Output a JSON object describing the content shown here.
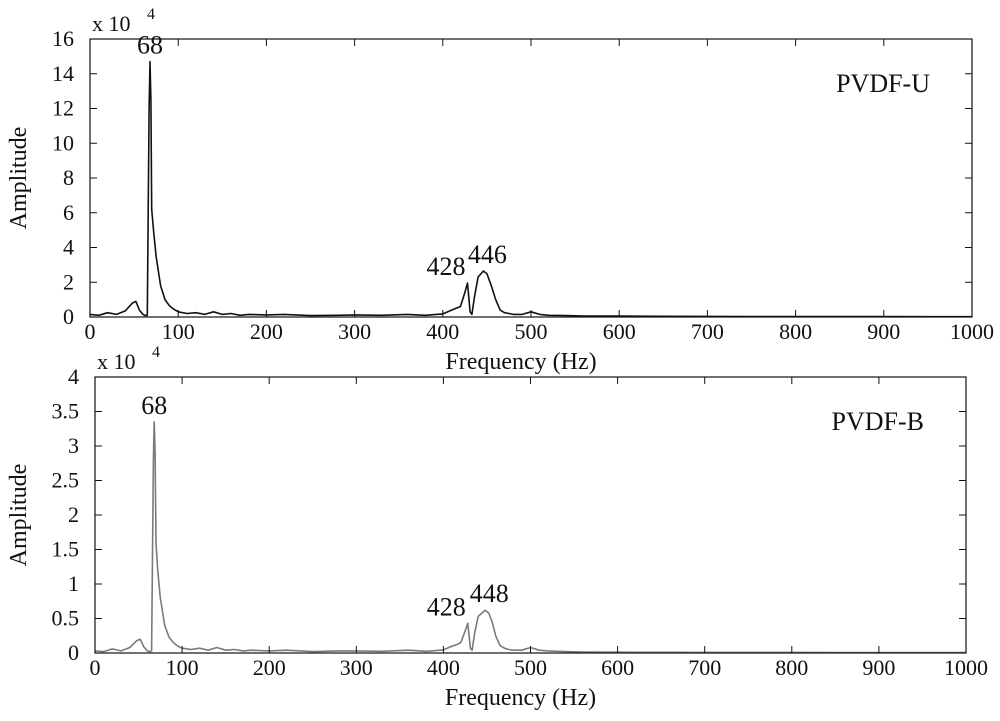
{
  "chart_data": [
    {
      "type": "line",
      "label": "PVDF-U",
      "xlabel": "Frequency (Hz)",
      "ylabel": "Amplitude",
      "y_multiplier": "x 10",
      "y_multiplier_exp": "4",
      "xlim": [
        0,
        1000
      ],
      "ylim": [
        0,
        160000
      ],
      "xticks": [
        0,
        100,
        200,
        300,
        400,
        500,
        600,
        700,
        800,
        900,
        1000
      ],
      "xtick_labels": [
        "0",
        "100",
        "200",
        "300",
        "400",
        "500",
        "600",
        "700",
        "800",
        "900",
        "1000"
      ],
      "yticks": [
        0,
        20000,
        40000,
        60000,
        80000,
        100000,
        120000,
        140000,
        160000
      ],
      "ytick_labels": [
        "0",
        "2",
        "4",
        "6",
        "8",
        "10",
        "12",
        "14",
        "16"
      ],
      "line_color": "#111111",
      "grid": false,
      "annotations": [
        {
          "text": "68",
          "x": 68,
          "y": 147000
        },
        {
          "text": "428",
          "x": 428,
          "y": 19500
        },
        {
          "text": "446",
          "x": 446,
          "y": 26500
        }
      ],
      "series": [
        {
          "x": [
            0,
            10,
            20,
            30,
            40,
            48,
            52,
            56,
            60,
            63,
            65,
            67,
            68,
            69,
            70,
            72,
            75,
            80,
            85,
            90,
            95,
            100,
            110,
            120,
            130,
            140,
            150,
            160,
            170,
            180,
            200,
            220,
            250,
            280,
            300,
            330,
            360,
            380,
            400,
            410,
            415,
            420,
            425,
            428,
            431,
            433,
            436,
            440,
            446,
            450,
            455,
            460,
            465,
            470,
            475,
            480,
            490,
            500,
            510,
            520,
            540,
            560,
            600,
            650,
            700,
            750,
            800,
            850,
            900,
            950,
            1000
          ],
          "y": [
            1500,
            1000,
            2500,
            1500,
            3500,
            8000,
            9000,
            4000,
            1500,
            800,
            1000,
            120000,
            147000,
            125000,
            62000,
            50000,
            35000,
            18000,
            10000,
            6500,
            4500,
            3000,
            2000,
            2500,
            1500,
            3000,
            1500,
            2000,
            1000,
            1500,
            1200,
            1500,
            800,
            1000,
            1200,
            1000,
            1500,
            1000,
            1800,
            4000,
            5000,
            6000,
            14000,
            19500,
            3000,
            1500,
            12000,
            23000,
            26500,
            25000,
            18000,
            10000,
            4000,
            2500,
            2000,
            1500,
            1500,
            3000,
            1500,
            1000,
            800,
            600,
            500,
            400,
            350,
            300,
            300,
            250,
            250,
            200,
            200
          ]
        }
      ]
    },
    {
      "type": "line",
      "label": "PVDF-B",
      "xlabel": "Frequency (Hz)",
      "ylabel": "Amplitude",
      "y_multiplier": "x 10",
      "y_multiplier_exp": "4",
      "xlim": [
        0,
        1000
      ],
      "ylim": [
        0,
        40000
      ],
      "xticks": [
        0,
        100,
        200,
        300,
        400,
        500,
        600,
        700,
        800,
        900,
        1000
      ],
      "xtick_labels": [
        "0",
        "100",
        "200",
        "300",
        "400",
        "500",
        "600",
        "700",
        "800",
        "900",
        "1000"
      ],
      "yticks": [
        0,
        5000,
        10000,
        15000,
        20000,
        25000,
        30000,
        35000,
        40000
      ],
      "ytick_labels": [
        "0",
        "0.5",
        "1",
        "1.5",
        "2",
        "2.5",
        "3",
        "3.5",
        "4"
      ],
      "line_color": "#7a7a7a",
      "grid": false,
      "annotations": [
        {
          "text": "68",
          "x": 68,
          "y": 33500
        },
        {
          "text": "428",
          "x": 428,
          "y": 4300
        },
        {
          "text": "448",
          "x": 448,
          "y": 6200
        }
      ],
      "series": [
        {
          "x": [
            0,
            10,
            20,
            30,
            40,
            48,
            52,
            56,
            60,
            63,
            65,
            67,
            68,
            69,
            70,
            72,
            75,
            80,
            85,
            90,
            95,
            100,
            110,
            120,
            130,
            140,
            150,
            160,
            170,
            180,
            200,
            220,
            250,
            280,
            300,
            330,
            360,
            380,
            400,
            410,
            415,
            420,
            425,
            428,
            431,
            433,
            436,
            440,
            448,
            452,
            456,
            460,
            465,
            470,
            475,
            480,
            490,
            500,
            510,
            520,
            540,
            560,
            600,
            650,
            700,
            750,
            800,
            850,
            900,
            950,
            1000
          ],
          "y": [
            300,
            200,
            600,
            300,
            800,
            1800,
            2000,
            900,
            300,
            200,
            300,
            28000,
            33500,
            29000,
            16000,
            12000,
            8000,
            4000,
            2300,
            1500,
            1000,
            700,
            500,
            700,
            400,
            800,
            400,
            500,
            300,
            400,
            300,
            400,
            200,
            300,
            300,
            250,
            400,
            250,
            450,
            1000,
            1200,
            1500,
            3200,
            4300,
            700,
            400,
            3000,
            5300,
            6200,
            5800,
            4500,
            2500,
            1100,
            700,
            500,
            400,
            400,
            800,
            400,
            300,
            200,
            150,
            120,
            100,
            90,
            80,
            80,
            70,
            70,
            60,
            60
          ]
        }
      ]
    }
  ]
}
